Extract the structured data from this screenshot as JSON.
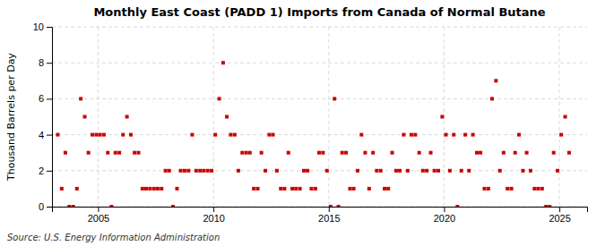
{
  "chart_data": {
    "type": "scatter",
    "title": "Monthly East Coast (PADD 1) Imports from Canada of Normal Butane",
    "y_label": "Thousand Barrels per Day",
    "annotations": [
      "Source: U.S. Energy Information Administration"
    ],
    "color": "#cc0000",
    "marker": "square",
    "grid": true,
    "xlim": [
      2003.0,
      2026.2
    ],
    "xticks": [
      2005,
      2010,
      2015,
      2020,
      2025
    ],
    "ylim": [
      0,
      10
    ],
    "yticks": [
      0,
      2,
      4,
      6,
      8,
      10
    ],
    "x": [
      2003.25,
      2003.42,
      2003.58,
      2003.75,
      2003.92,
      2004.08,
      2004.25,
      2004.42,
      2004.58,
      2004.75,
      2004.92,
      2005.08,
      2005.25,
      2005.42,
      2005.58,
      2005.75,
      2005.92,
      2006.08,
      2006.25,
      2006.42,
      2006.58,
      2006.75,
      2006.92,
      2007.08,
      2007.25,
      2007.42,
      2007.58,
      2007.75,
      2007.92,
      2008.08,
      2008.25,
      2008.42,
      2008.58,
      2008.75,
      2008.92,
      2009.08,
      2009.25,
      2009.42,
      2009.58,
      2009.75,
      2009.92,
      2010.08,
      2010.25,
      2010.42,
      2010.58,
      2010.75,
      2010.92,
      2011.08,
      2011.25,
      2011.42,
      2011.58,
      2011.75,
      2011.92,
      2012.08,
      2012.25,
      2012.42,
      2012.58,
      2012.75,
      2012.92,
      2013.08,
      2013.25,
      2013.42,
      2013.58,
      2013.75,
      2013.92,
      2014.08,
      2014.25,
      2014.42,
      2014.58,
      2014.75,
      2014.92,
      2015.08,
      2015.25,
      2015.42,
      2015.58,
      2015.75,
      2015.92,
      2016.08,
      2016.25,
      2016.42,
      2016.58,
      2016.75,
      2016.92,
      2017.08,
      2017.25,
      2017.42,
      2017.58,
      2017.75,
      2017.92,
      2018.08,
      2018.25,
      2018.42,
      2018.58,
      2018.75,
      2018.92,
      2019.08,
      2019.25,
      2019.42,
      2019.58,
      2019.75,
      2019.92,
      2020.08,
      2020.25,
      2020.42,
      2020.58,
      2020.75,
      2020.92,
      2021.08,
      2021.25,
      2021.42,
      2021.58,
      2021.75,
      2021.92,
      2022.08,
      2022.25,
      2022.42,
      2022.58,
      2022.75,
      2022.92,
      2023.08,
      2023.25,
      2023.42,
      2023.58,
      2023.75,
      2023.92,
      2024.08,
      2024.25,
      2024.42,
      2024.58,
      2024.75,
      2024.92,
      2025.08,
      2025.25,
      2025.42
    ],
    "values": [
      4,
      1,
      3,
      0,
      0,
      1,
      6,
      5,
      3,
      4,
      4,
      4,
      4,
      3,
      0,
      3,
      3,
      4,
      5,
      4,
      3,
      3,
      1,
      1,
      1,
      1,
      1,
      1,
      2,
      2,
      0,
      1,
      2,
      2,
      2,
      4,
      2,
      2,
      2,
      2,
      2,
      4,
      6,
      8,
      5,
      4,
      4,
      2,
      3,
      3,
      3,
      1,
      1,
      3,
      2,
      4,
      4,
      2,
      1,
      1,
      3,
      1,
      1,
      1,
      2,
      2,
      1,
      1,
      3,
      3,
      2,
      0,
      6,
      0,
      3,
      3,
      1,
      1,
      2,
      4,
      3,
      1,
      3,
      2,
      2,
      1,
      1,
      3,
      2,
      2,
      4,
      2,
      4,
      4,
      3,
      2,
      2,
      3,
      2,
      2,
      5,
      4,
      2,
      4,
      0,
      2,
      4,
      2,
      4,
      3,
      3,
      1,
      1,
      6,
      7,
      2,
      3,
      1,
      1,
      3,
      4,
      2,
      3,
      2,
      1,
      1,
      1,
      0,
      0,
      3,
      2,
      4,
      5,
      3
    ]
  }
}
